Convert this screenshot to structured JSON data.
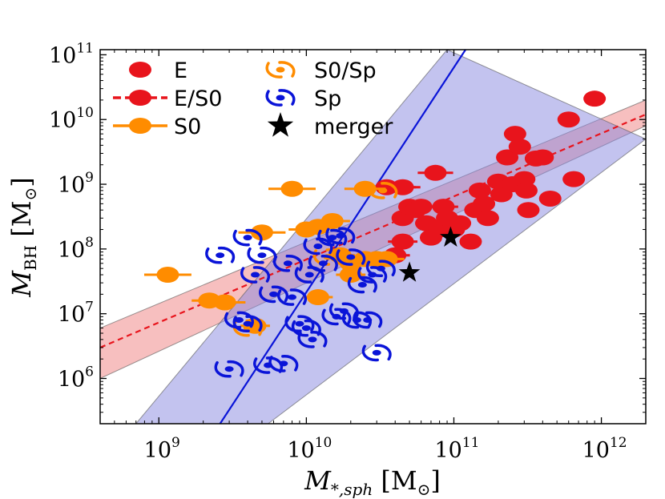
{
  "chart_data": {
    "type": "scatter",
    "x_scale": "log",
    "y_scale": "log",
    "xlim": [
      400000000,
      2000000000000
    ],
    "ylim": [
      200000,
      120000000000
    ],
    "x_ticks": [
      {
        "value": 1000000000,
        "base": "10",
        "exp": "9"
      },
      {
        "value": 10000000000,
        "base": "10",
        "exp": "10"
      },
      {
        "value": 100000000000,
        "base": "10",
        "exp": "11"
      },
      {
        "value": 1000000000000,
        "base": "10",
        "exp": "12"
      }
    ],
    "y_ticks": [
      {
        "value": 1000000,
        "base": "10",
        "exp": "6"
      },
      {
        "value": 10000000,
        "base": "10",
        "exp": "7"
      },
      {
        "value": 100000000,
        "base": "10",
        "exp": "8"
      },
      {
        "value": 1000000000,
        "base": "10",
        "exp": "9"
      },
      {
        "value": 10000000000,
        "base": "10",
        "exp": "10"
      },
      {
        "value": 100000000000,
        "base": "10",
        "exp": "11"
      }
    ],
    "xlabel": {
      "main": "M",
      "sub": "*,sph",
      "unit_open": " [M",
      "unit_sub": "⊙",
      "unit_close": "]"
    },
    "ylabel": {
      "main": "M",
      "sub": "BH",
      "unit_open": " [M",
      "unit_sub": "⊙",
      "unit_close": "]"
    },
    "fits": [
      {
        "name": "early-type fit",
        "color": "#e8141c",
        "band_color": "#f08080",
        "dashed": true,
        "x1": 400000000,
        "y1": 3000000,
        "x2": 2000000000000,
        "y2": 12000000000,
        "band_lo": [
          1000000,
          8000000000
        ],
        "band_hi": [
          6000000,
          20000000000
        ]
      },
      {
        "name": "spiral fit",
        "color": "#0a14d8",
        "band_color": "#8888e0",
        "dashed": false,
        "x1": 2600000000,
        "y1": 200000,
        "x2": 120000000000,
        "y2": 120000000000,
        "band_left": [
          [
            700000000,
            200000
          ],
          [
            90000000000,
            120000000000
          ]
        ],
        "band_right": [
          [
            5500000000,
            200000
          ],
          [
            2000000000000,
            5000000000
          ]
        ]
      }
    ],
    "series": [
      {
        "name": "E",
        "marker": "ellipse",
        "color": "#e8141c",
        "points": [
          [
            45000000000,
            300000000,
            0
          ],
          [
            50000000000,
            450000000,
            0
          ],
          [
            55000000000,
            400000000,
            0
          ],
          [
            60000000000,
            450000000,
            0
          ],
          [
            65000000000,
            250000000,
            0
          ],
          [
            70000000000,
            150000000,
            0
          ],
          [
            80000000000,
            200000000,
            0
          ],
          [
            90000000000,
            300000000,
            0
          ],
          [
            100000000000,
            200000000,
            0
          ],
          [
            110000000000,
            250000000,
            0
          ],
          [
            130000000000,
            130000000,
            0
          ],
          [
            140000000000,
            400000000,
            0
          ],
          [
            150000000000,
            800000000,
            0
          ],
          [
            160000000000,
            500000000,
            0
          ],
          [
            170000000000,
            300000000,
            0
          ],
          [
            200000000000,
            1100000000,
            0
          ],
          [
            210000000000,
            700000000,
            0
          ],
          [
            230000000000,
            2600000000,
            0
          ],
          [
            250000000000,
            1000000000,
            0
          ],
          [
            260000000000,
            6000000000,
            0
          ],
          [
            280000000000,
            3800000000,
            0
          ],
          [
            300000000000,
            1200000000,
            0
          ],
          [
            310000000000,
            800000000,
            0
          ],
          [
            320000000000,
            400000000,
            0
          ],
          [
            360000000000,
            2500000000,
            0
          ],
          [
            400000000000,
            2600000000,
            0
          ],
          [
            450000000000,
            600000000,
            0
          ],
          [
            600000000000,
            10000000000,
            0
          ],
          [
            650000000000,
            1200000000,
            0
          ],
          [
            900000000000,
            21000000000,
            0
          ]
        ]
      },
      {
        "name": "E/S0",
        "marker": "ellipse",
        "color": "#e8141c",
        "points": [
          [
            35000000000,
            900000000,
            0.2
          ],
          [
            45000000000,
            900000000,
            0.12
          ],
          [
            75000000000,
            1500000000,
            0.12
          ],
          [
            45000000000,
            130000000,
            0.1
          ],
          [
            85000000000,
            450000000,
            0.1
          ],
          [
            40000000000,
            80000000,
            0.1
          ]
        ]
      },
      {
        "name": "S0",
        "marker": "ellipse",
        "color": "#ff8c00",
        "points": [
          [
            1150000000,
            40000000,
            0.16
          ],
          [
            2200000000,
            16000000,
            0.12
          ],
          [
            2800000000,
            15000000,
            0.14
          ],
          [
            4500000000,
            6500000,
            0.1
          ],
          [
            5000000000,
            180000000,
            0.16
          ],
          [
            8000000000,
            850000000,
            0.16
          ],
          [
            10000000000,
            200000000,
            0.12
          ],
          [
            12000000000,
            220000000,
            0.12
          ],
          [
            12000000000,
            18000000,
            0.1
          ],
          [
            15000000000,
            270000000,
            0.12
          ],
          [
            17000000000,
            80000000,
            0.1
          ],
          [
            20000000000,
            60000000,
            0.1
          ],
          [
            20000000000,
            40000000,
            0.1
          ],
          [
            25000000000,
            70000000,
            0.12
          ],
          [
            25000000000,
            850000000,
            0.14
          ],
          [
            30000000000,
            70000000,
            0.14
          ],
          [
            35000000000,
            70000000,
            0.12
          ]
        ]
      },
      {
        "name": "S0/Sp",
        "marker": "spiral",
        "color": "#ff8c00",
        "points": [
          [
            4000000000,
            6000000
          ],
          [
            33000000000,
            800000000
          ],
          [
            14000000000,
            75000000
          ]
        ]
      },
      {
        "name": "Sp",
        "marker": "spiral",
        "color": "#0a14d8",
        "points": [
          [
            2600000000,
            80000000
          ],
          [
            3000000000,
            1400000
          ],
          [
            3500000000,
            8000000
          ],
          [
            4000000000,
            7000000
          ],
          [
            4000000000,
            150000000
          ],
          [
            4500000000,
            40000000
          ],
          [
            5000000000,
            80000000
          ],
          [
            5500000000,
            1600000
          ],
          [
            6000000000,
            20000000
          ],
          [
            7000000000,
            1700000
          ],
          [
            7500000000,
            60000000
          ],
          [
            8000000000,
            18000000
          ],
          [
            9000000000,
            7000000
          ],
          [
            10000000000,
            6000000
          ],
          [
            10500000000,
            40000000
          ],
          [
            11000000000,
            4000000
          ],
          [
            12000000000,
            110000000
          ],
          [
            13000000000,
            60000000
          ],
          [
            15000000000,
            150000000
          ],
          [
            16000000000,
            9000000
          ],
          [
            17000000000,
            160000000
          ],
          [
            18000000000,
            11000000
          ],
          [
            20000000000,
            75000000
          ],
          [
            22000000000,
            8000000
          ],
          [
            24000000000,
            28000000
          ],
          [
            26000000000,
            8000000
          ],
          [
            28000000000,
            40000000
          ],
          [
            30000000000,
            2500000
          ],
          [
            32000000000,
            50000000
          ]
        ]
      },
      {
        "name": "merger",
        "marker": "star",
        "color": "#000000",
        "points": [
          [
            95000000000,
            150000000
          ],
          [
            50000000000,
            43000000
          ]
        ]
      }
    ],
    "legend": {
      "position": "top-left",
      "entries": [
        {
          "label": "E",
          "marker": "ellipse",
          "color": "#e8141c",
          "line": false
        },
        {
          "label": "E/S0",
          "marker": "ellipse",
          "color": "#e8141c",
          "line": true
        },
        {
          "label": "S0",
          "marker": "ellipse",
          "color": "#ff8c00",
          "line": true
        },
        {
          "label": "S0/Sp",
          "marker": "spiral",
          "color": "#ff8c00",
          "line": false
        },
        {
          "label": "Sp",
          "marker": "spiral",
          "color": "#0a14d8",
          "line": false
        },
        {
          "label": "merger",
          "marker": "star",
          "color": "#000000",
          "line": false
        }
      ]
    }
  }
}
